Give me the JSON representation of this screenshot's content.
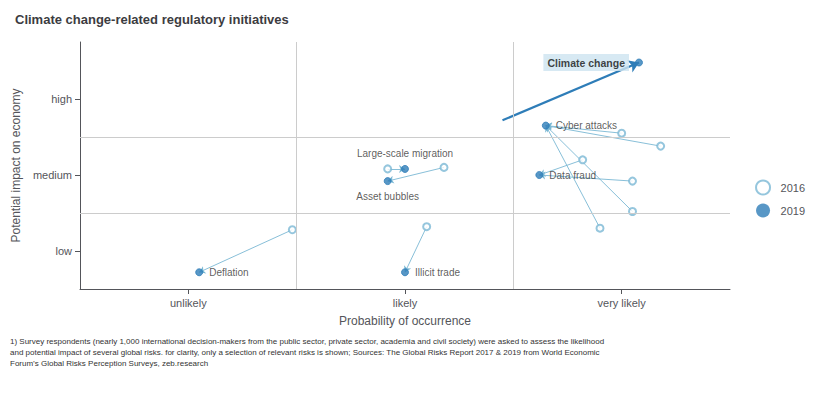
{
  "chart_data": {
    "type": "scatter",
    "title": "Climate change-related regulatory initiatives",
    "xlabel": "Probability of occurrence",
    "ylabel": "Potential impact on economy",
    "footnote": "1) Survey respondents (nearly 1,000 international decision-makers from the public sector, private sector, academia and civil society) were asked to assess the likelihood\nand potential impact of several global risks. for clarity, only a selection of relevant risks is shown; Sources: The Global Risks Report 2017 & 2019 from World Economic\nForum’s Global Risks Perception Surveys, zeb.research",
    "xlim": [
      0.5,
      3.5
    ],
    "ylim": [
      0.5,
      3.75
    ],
    "xticks": [
      {
        "value": 1,
        "label": "unlikely"
      },
      {
        "value": 2,
        "label": "likely"
      },
      {
        "value": 3,
        "label": "very likely"
      }
    ],
    "yticks": [
      {
        "value": 1,
        "label": "low"
      },
      {
        "value": 2,
        "label": "medium"
      },
      {
        "value": 3,
        "label": "high"
      }
    ],
    "grid": false,
    "legend": "right",
    "series": [
      {
        "name": "2016",
        "color": "#7ab8d4",
        "marker": "open circle",
        "x": [
          1.48,
          2.1,
          2.18,
          1.92,
          2.82,
          3.0,
          3.18,
          3.05,
          3.05,
          2.9
        ],
        "y": [
          1.28,
          1.32,
          2.1,
          2.08,
          2.2,
          2.55,
          2.38,
          1.92,
          1.52,
          1.3
        ]
      },
      {
        "name": "2019",
        "color": "#2e7db8",
        "marker": "filled circle",
        "x": [
          1.05,
          2.0,
          1.92,
          2.0,
          2.62,
          2.65,
          3.08
        ],
        "y": [
          0.72,
          0.72,
          1.92,
          2.08,
          2.0,
          2.65,
          3.48
        ],
        "labels": [
          "Deflation",
          "Illicit trade",
          "Asset bubbles",
          "Large-scale migration",
          "Data fraud",
          "Cyber attacks",
          "Climate change"
        ]
      }
    ],
    "arrows": [
      {
        "x1": 1.48,
        "y1": 1.28,
        "x2": 1.05,
        "y2": 0.72
      },
      {
        "x1": 2.1,
        "y1": 1.32,
        "x2": 2.0,
        "y2": 0.72
      },
      {
        "x1": 2.18,
        "y1": 2.1,
        "x2": 1.92,
        "y2": 1.92
      },
      {
        "x1": 2.82,
        "y1": 2.2,
        "x2": 2.62,
        "y2": 2.0
      },
      {
        "x1": 3.0,
        "y1": 2.55,
        "x2": 2.65,
        "y2": 2.65
      },
      {
        "x1": 3.18,
        "y1": 2.38,
        "x2": 2.65,
        "y2": 2.65
      },
      {
        "x1": 3.05,
        "y1": 1.92,
        "x2": 2.62,
        "y2": 2.0
      },
      {
        "x1": 3.05,
        "y1": 1.52,
        "x2": 2.65,
        "y2": 2.65
      },
      {
        "x1": 2.9,
        "y1": 1.3,
        "x2": 2.65,
        "y2": 2.65
      },
      {
        "x1": 1.92,
        "y1": 2.08,
        "x2": 2.0,
        "y2": 2.08
      }
    ],
    "highlight_arrow": {
      "x1": 2.45,
      "y1": 2.72,
      "x2": 3.08,
      "y2": 3.48
    },
    "highlight_label": {
      "label": "Climate change",
      "color": "#cde4f0"
    },
    "dividers": {
      "x": [
        1.5,
        2.5
      ],
      "y": [
        1.5,
        2.5
      ]
    }
  }
}
